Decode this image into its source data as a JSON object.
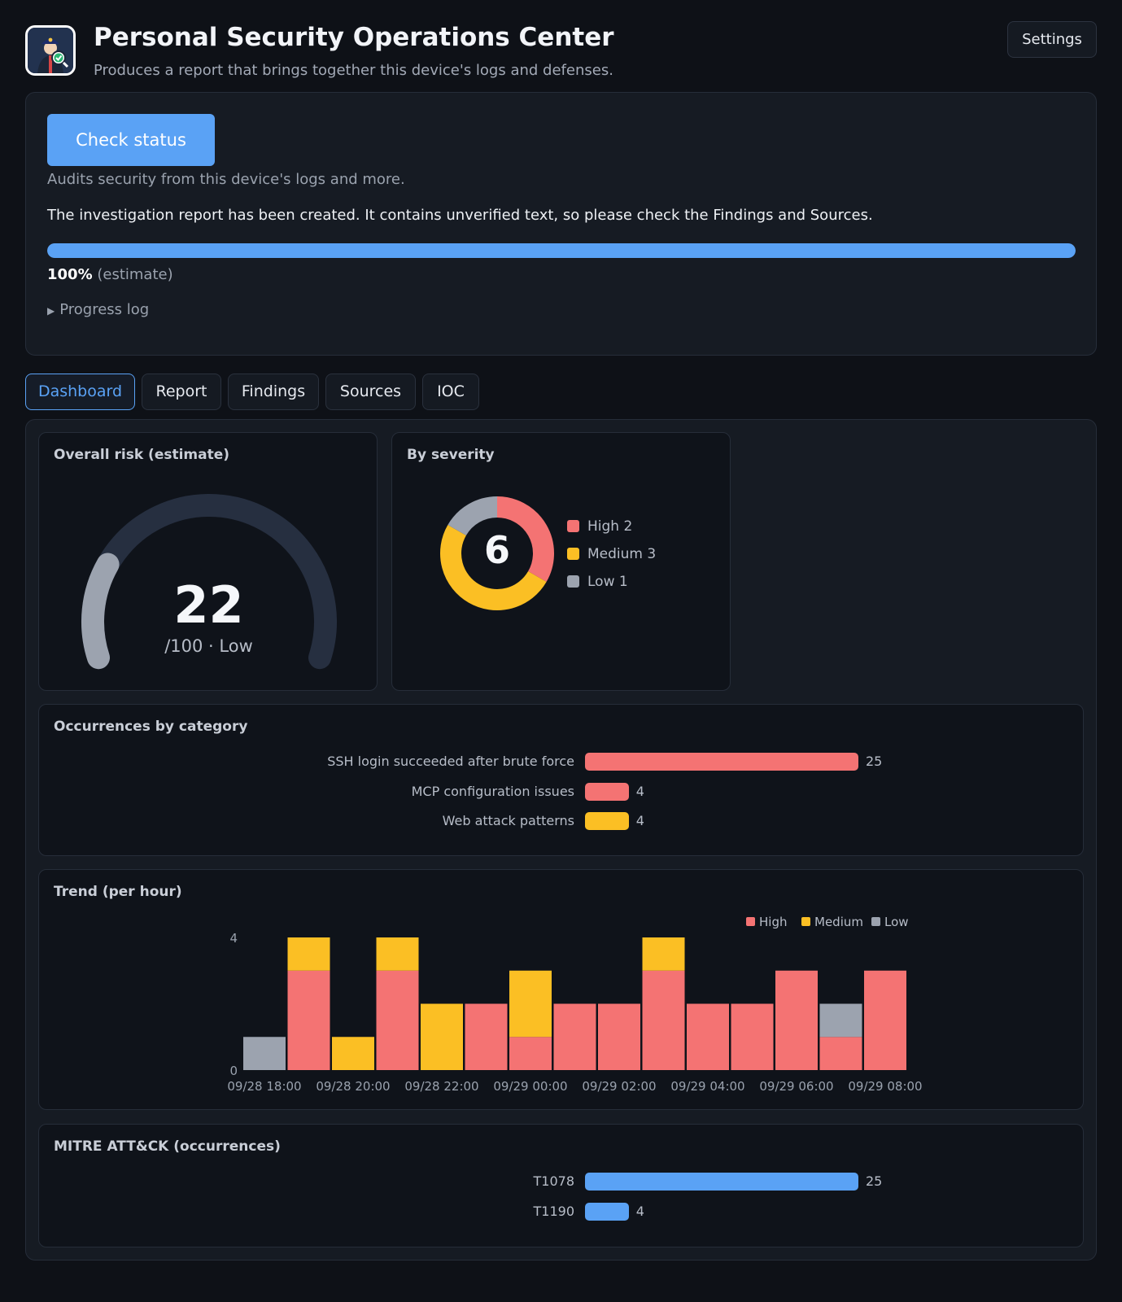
{
  "header": {
    "title": "Personal Security Operations Center",
    "subtitle": "Produces a report that brings together this device's logs and defenses.",
    "settings_label": "Settings"
  },
  "status": {
    "check_button": "Check status",
    "description": "Audits security from this device's logs and more.",
    "message": "The investigation report has been created. It contains unverified text, so please check the Findings and Sources.",
    "progress_percent": 100,
    "progress_label": "100%",
    "progress_note": "(estimate)",
    "progress_log_label": "Progress log"
  },
  "tabs": [
    {
      "label": "Dashboard",
      "active": true
    },
    {
      "label": "Report",
      "active": false
    },
    {
      "label": "Findings",
      "active": false
    },
    {
      "label": "Sources",
      "active": false
    },
    {
      "label": "IOC",
      "active": false
    }
  ],
  "risk": {
    "title": "Overall risk (estimate)",
    "score": "22",
    "max": 100,
    "sub": "/100 · Low"
  },
  "severity": {
    "title": "By severity",
    "total": "6",
    "items": [
      {
        "label": "High 2",
        "name": "High",
        "count": 2,
        "color": "#f47373"
      },
      {
        "label": "Medium 3",
        "name": "Medium",
        "count": 3,
        "color": "#fbbf24"
      },
      {
        "label": "Low 1",
        "name": "Low",
        "count": 1,
        "color": "#9ca3af"
      }
    ]
  },
  "colors": {
    "high": "#f47373",
    "medium": "#fbbf24",
    "low": "#9ca3af",
    "accent": "#5aa2f5"
  },
  "chart_data": [
    {
      "type": "bar",
      "title": "Occurrences by category",
      "orientation": "horizontal",
      "categories": [
        "SSH login succeeded after brute force",
        "MCP configuration issues",
        "Web attack patterns"
      ],
      "values": [
        25,
        4,
        4
      ],
      "colors": [
        "#f47373",
        "#f47373",
        "#fbbf24"
      ]
    },
    {
      "type": "bar",
      "stacked": true,
      "title": "Trend (per hour)",
      "x": [
        "09/28 18:00",
        "09/28 19:00",
        "09/28 20:00",
        "09/28 21:00",
        "09/28 22:00",
        "09/28 23:00",
        "09/29 00:00",
        "09/29 01:00",
        "09/29 02:00",
        "09/29 03:00",
        "09/29 04:00",
        "09/29 05:00",
        "09/29 06:00",
        "09/29 07:00",
        "09/29 08:00",
        "09/29 09:00"
      ],
      "tick_labels": [
        "09/28 18:00",
        "09/28 20:00",
        "09/28 22:00",
        "09/29 00:00",
        "09/29 02:00",
        "09/29 04:00",
        "09/29 06:00",
        "09/29 08:00"
      ],
      "y_ticks": [
        "0",
        "4"
      ],
      "ylim": [
        0,
        4
      ],
      "legend": [
        "High",
        "Medium",
        "Low"
      ],
      "legend_position": "top-right",
      "series": [
        {
          "name": "High",
          "color": "#f47373",
          "values": [
            0,
            3,
            0,
            3,
            0,
            2,
            1,
            2,
            2,
            3,
            2,
            2,
            3,
            1,
            3,
            0
          ]
        },
        {
          "name": "Medium",
          "color": "#fbbf24",
          "values": [
            0,
            1,
            1,
            1,
            2,
            0,
            2,
            0,
            0,
            1,
            0,
            0,
            0,
            0,
            0,
            0
          ]
        },
        {
          "name": "Low",
          "color": "#9ca3af",
          "values": [
            1,
            0,
            0,
            0,
            0,
            0,
            0,
            0,
            0,
            0,
            0,
            0,
            0,
            1,
            0,
            0
          ]
        }
      ]
    },
    {
      "type": "bar",
      "title": "MITRE ATT&CK (occurrences)",
      "orientation": "horizontal",
      "categories": [
        "T1078",
        "T1190"
      ],
      "values": [
        25,
        4
      ],
      "colors": [
        "#5aa2f5",
        "#5aa2f5"
      ]
    }
  ]
}
